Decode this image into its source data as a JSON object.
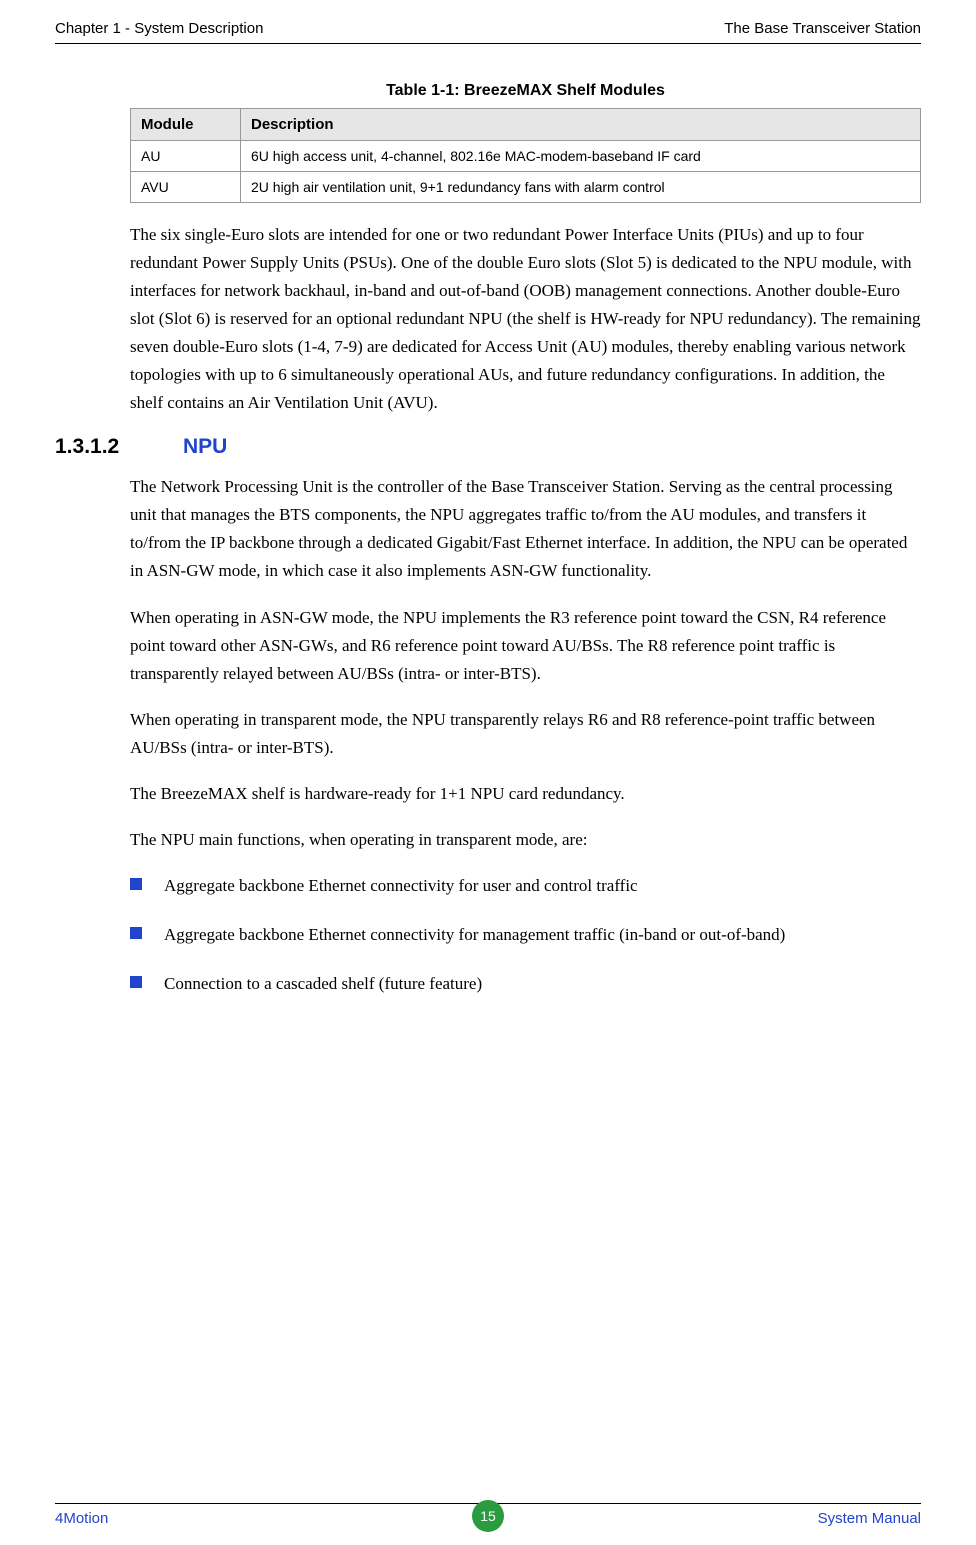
{
  "header": {
    "left": "Chapter 1 - System Description",
    "right": "The Base Transceiver Station"
  },
  "table": {
    "caption": "Table 1-1: BreezeMAX Shelf Modules",
    "columns": [
      "Module",
      "Description"
    ],
    "rows": [
      [
        "AU",
        "6U high access unit, 4-channel, 802.16e MAC-modem-baseband IF card"
      ],
      [
        "AVU",
        "2U high air ventilation unit, 9+1 redundancy fans with alarm control"
      ]
    ]
  },
  "para1": "The six single-Euro slots are intended for one or two redundant Power Interface Units (PIUs) and up to four redundant Power Supply Units (PSUs). One of the double Euro slots (Slot 5) is dedicated to the NPU module, with interfaces for network backhaul, in-band and out-of-band (OOB) management connections. Another double-Euro slot (Slot 6) is reserved for an optional redundant NPU (the shelf is HW-ready for NPU redundancy). The remaining seven double-Euro slots (1-4, 7-9) are dedicated for Access Unit (AU) modules, thereby enabling various network topologies with up to 6 simultaneously operational AUs, and future redundancy configurations. In addition, the shelf contains an Air Ventilation Unit (AVU).",
  "section": {
    "number": "1.3.1.2",
    "title": "NPU"
  },
  "para2": "The Network Processing Unit is the controller of the Base Transceiver Station. Serving as the central processing unit that manages the BTS components, the NPU aggregates traffic to/from the AU modules, and transfers it to/from the IP backbone through a dedicated Gigabit/Fast Ethernet interface. In addition, the NPU can be operated in ASN-GW mode, in which case it also implements ASN-GW functionality.",
  "para3": "When operating in ASN-GW mode, the NPU implements the R3 reference point toward the CSN, R4 reference point toward other ASN-GWs, and R6 reference point toward AU/BSs. The R8 reference point traffic is transparently relayed between AU/BSs (intra- or inter-BTS).",
  "para4": "When operating in transparent mode, the NPU transparently relays R6 and R8 reference-point traffic between AU/BSs (intra- or inter-BTS).",
  "para5": "The BreezeMAX shelf is hardware-ready for 1+1 NPU card redundancy.",
  "para6": "The NPU main functions, when operating in transparent mode, are:",
  "bullets": [
    "Aggregate backbone Ethernet connectivity for user and control traffic",
    "Aggregate backbone Ethernet connectivity for management traffic (in-band or out-of-band)",
    "Connection to a cascaded shelf (future feature)"
  ],
  "footer": {
    "left": "4Motion",
    "page": "15",
    "right": "System Manual"
  },
  "colors": {
    "accent": "#2244cc",
    "badge": "#2a9c3f",
    "table_header_bg": "#e6e6e6",
    "border": "#999999"
  }
}
